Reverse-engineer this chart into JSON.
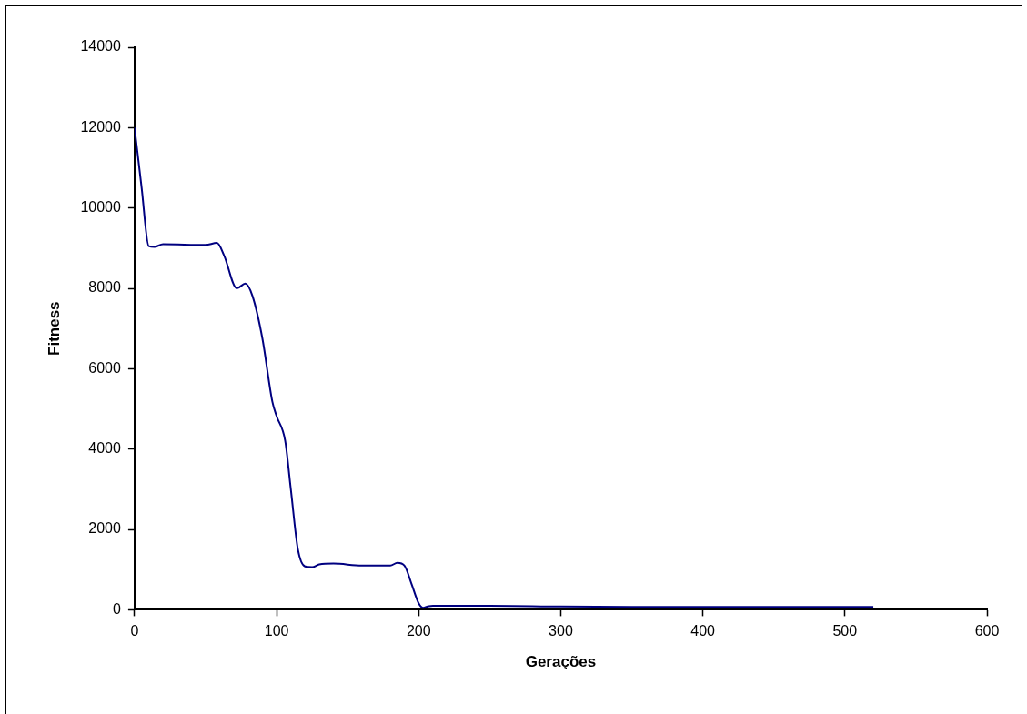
{
  "chart_data": {
    "type": "line",
    "xlabel": "Gerações",
    "ylabel": "Fitness",
    "xlim": [
      0,
      600
    ],
    "xticks": [
      0,
      100,
      200,
      300,
      400,
      500,
      600
    ],
    "ylim": [
      0,
      14000
    ],
    "yticks": [
      0,
      2000,
      4000,
      6000,
      8000,
      10000,
      12000,
      14000
    ],
    "grid": false,
    "legend": false,
    "marker": "none",
    "line_style": "solid",
    "series": [
      {
        "color": "#000080",
        "x": [
          0,
          5,
          10,
          14,
          20,
          50,
          58,
          63,
          72,
          78,
          83,
          90,
          97,
          100,
          106,
          110,
          115,
          120,
          125,
          130,
          140,
          160,
          180,
          185,
          190,
          195,
          200,
          203,
          207,
          210,
          250,
          300,
          350,
          520
        ],
        "values": [
          12000,
          10500,
          9050,
          9030,
          9100,
          9080,
          9130,
          8820,
          8000,
          8120,
          7810,
          6750,
          5180,
          4820,
          4210,
          3000,
          1500,
          1080,
          1060,
          1130,
          1150,
          1100,
          1100,
          1170,
          1100,
          640,
          160,
          50,
          90,
          100,
          100,
          80,
          70,
          70
        ]
      }
    ]
  }
}
